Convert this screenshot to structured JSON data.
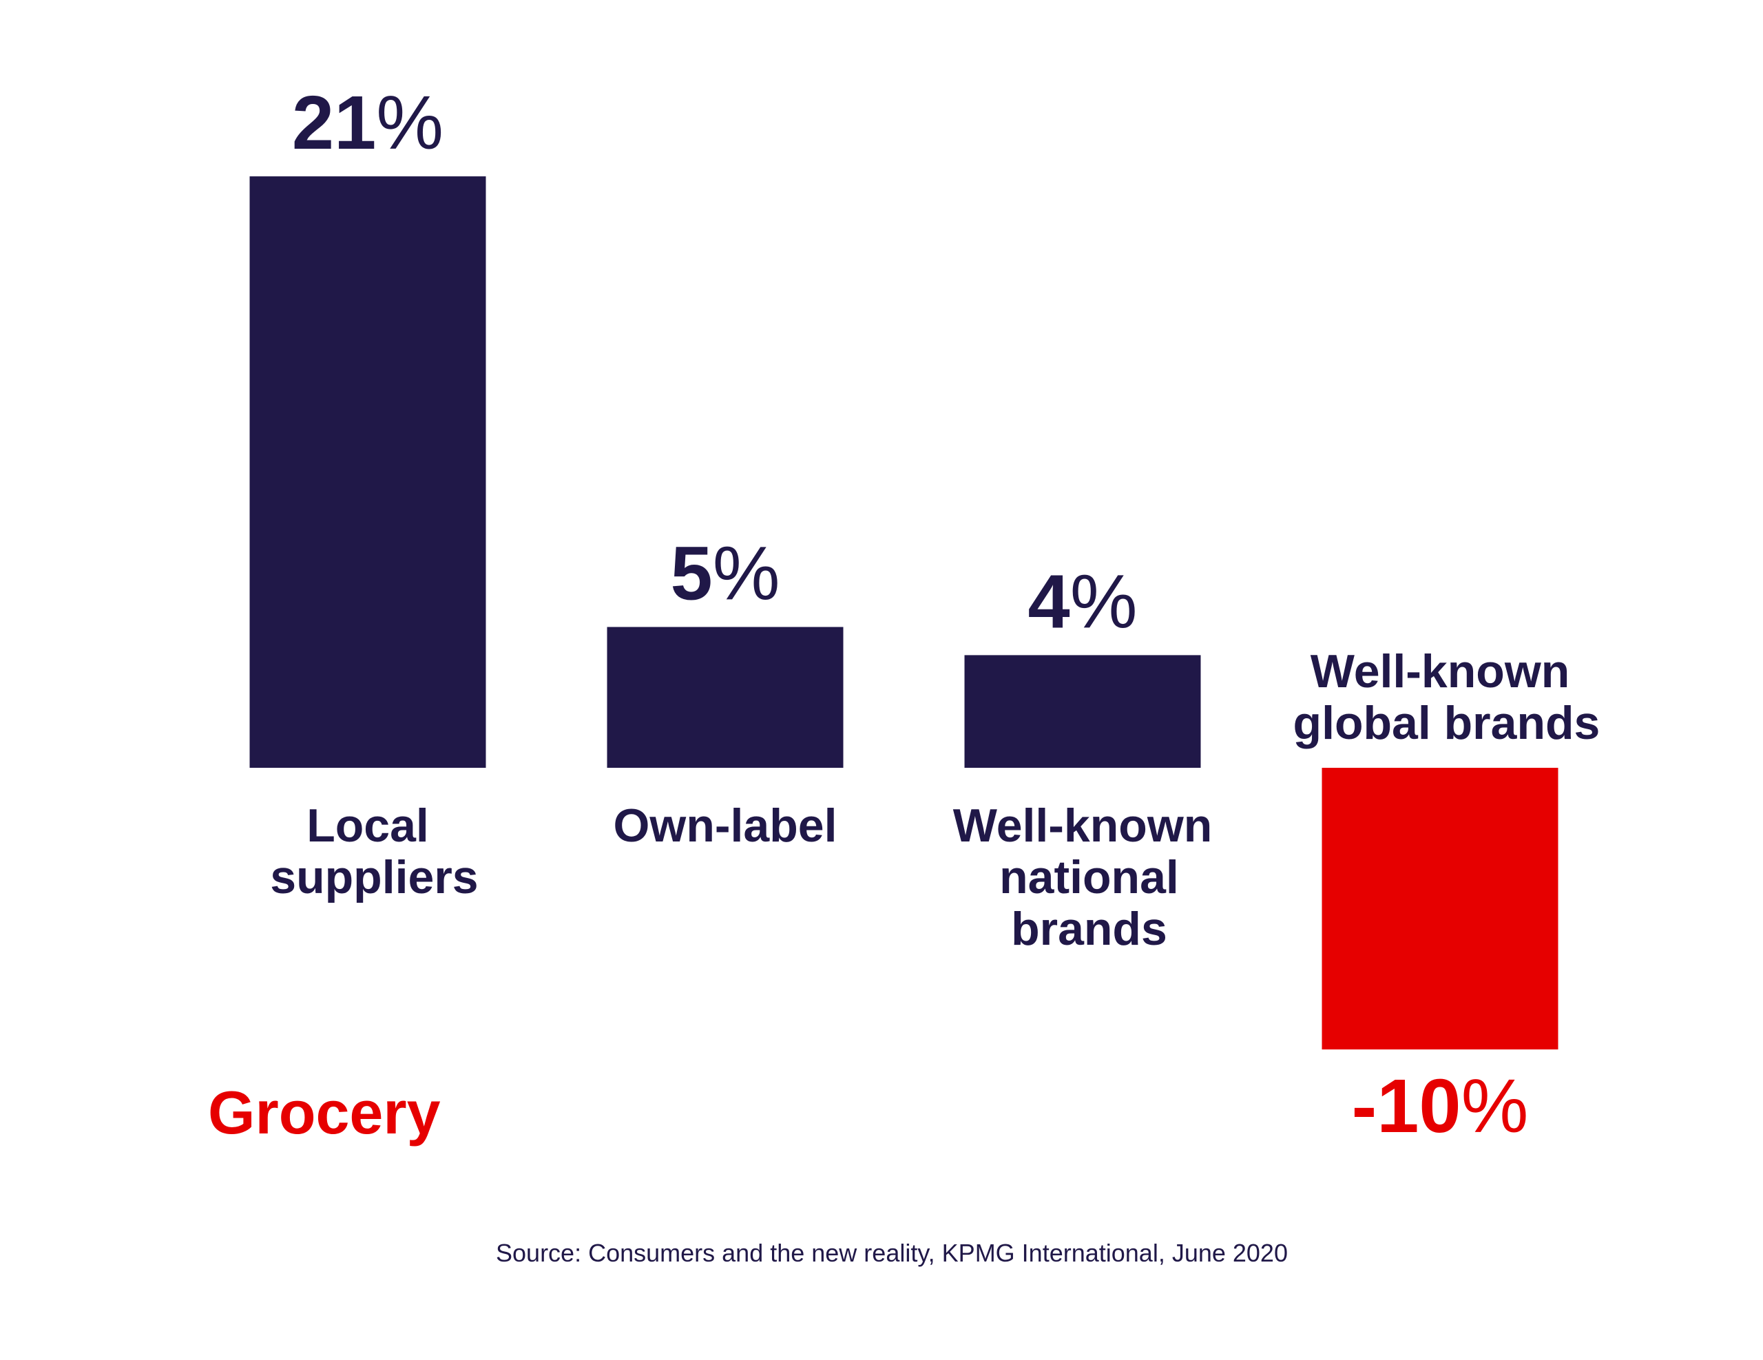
{
  "chart_data": {
    "type": "bar",
    "title": "Grocery",
    "categories": [
      "Local suppliers",
      "Own-label",
      "Well-known national brands",
      "Well-known global brands"
    ],
    "values": [
      21,
      5,
      4,
      -10
    ],
    "value_labels": [
      "21%",
      "5%",
      "4%",
      "-10%"
    ],
    "colors": [
      "#201848",
      "#201848",
      "#201848",
      "#e60000"
    ],
    "source": "Source: Consumers and the new reality, KPMG International, June 2020"
  }
}
